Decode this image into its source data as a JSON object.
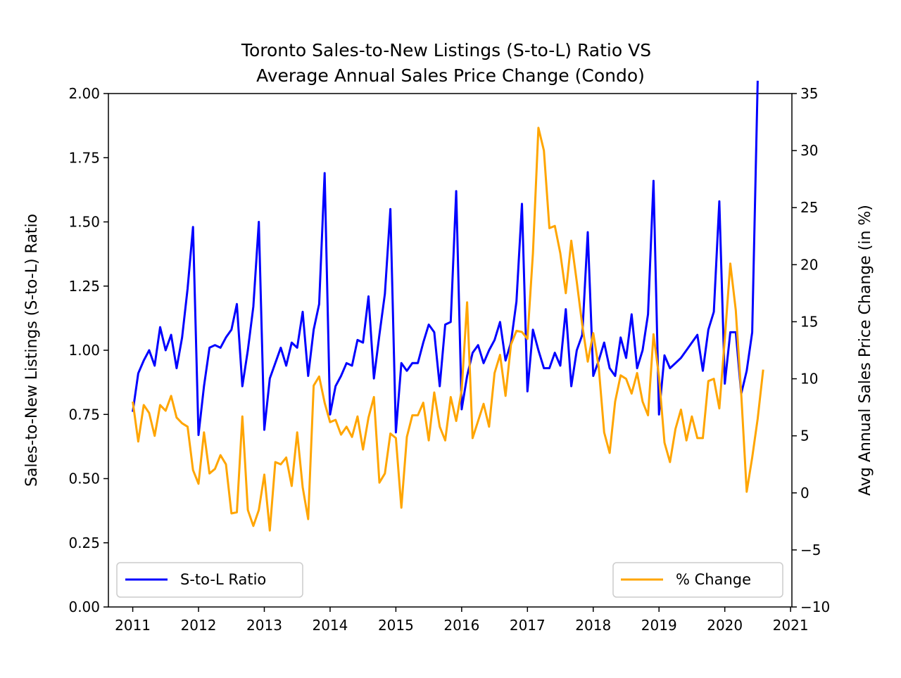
{
  "chart_data": {
    "type": "line",
    "title": [
      "Toronto Sales-to-New Listings (S-to-L) Ratio VS",
      "Average Annual Sales Price Change (Condo)"
    ],
    "xlabel": "",
    "ylabel_left": "Sales-to-New Listings (S-to-L) Ratio",
    "ylabel_right": "Avg Annual Sales Price Change (in %)",
    "xlim": [
      2010.63,
      2021.02
    ],
    "ylim_left": [
      0,
      2.0
    ],
    "ylim_right": [
      -10,
      35
    ],
    "x_ticks": [
      2011,
      2012,
      2013,
      2014,
      2015,
      2016,
      2017,
      2018,
      2019,
      2020,
      2021
    ],
    "y_ticks_left": [
      "0.00",
      "0.25",
      "0.50",
      "0.75",
      "1.00",
      "1.25",
      "1.50",
      "1.75",
      "2.00"
    ],
    "y_ticks_right": [
      "−10",
      "−5",
      "0",
      "5",
      "10",
      "15",
      "20",
      "25",
      "30",
      "35"
    ],
    "grid": false,
    "series": [
      {
        "name": "S-to-L Ratio",
        "axis": "left",
        "color": "#0000ff",
        "legend_position": "lower-left",
        "start_year": 2011,
        "start_month": 1,
        "values": [
          0.76,
          0.91,
          0.96,
          1.0,
          0.94,
          1.09,
          1.0,
          1.06,
          0.93,
          1.05,
          1.24,
          1.48,
          0.67,
          0.86,
          1.01,
          1.02,
          1.01,
          1.05,
          1.08,
          1.18,
          0.86,
          1.0,
          1.17,
          1.5,
          0.69,
          0.89,
          0.95,
          1.01,
          0.94,
          1.03,
          1.01,
          1.15,
          0.9,
          1.08,
          1.18,
          1.69,
          0.75,
          0.86,
          0.9,
          0.95,
          0.94,
          1.04,
          1.03,
          1.21,
          0.89,
          1.06,
          1.22,
          1.55,
          0.68,
          0.95,
          0.92,
          0.95,
          0.95,
          1.03,
          1.1,
          1.07,
          0.86,
          1.1,
          1.11,
          1.62,
          0.77,
          0.9,
          0.99,
          1.02,
          0.95,
          1.0,
          1.04,
          1.11,
          0.96,
          1.03,
          1.19,
          1.57,
          0.84,
          1.08,
          1.0,
          0.93,
          0.93,
          0.99,
          0.94,
          1.16,
          0.86,
          1.0,
          1.06,
          1.46,
          0.9,
          0.96,
          1.03,
          0.93,
          0.9,
          1.05,
          0.97,
          1.14,
          0.93,
          1.0,
          1.14,
          1.66,
          0.75,
          0.98,
          0.93,
          0.95,
          0.97,
          1.0,
          1.03,
          1.06,
          0.92,
          1.08,
          1.15,
          1.58,
          0.87,
          1.07,
          1.07,
          0.83,
          0.92,
          1.07,
          2.05
        ]
      },
      {
        "name": "% Change",
        "axis": "right",
        "color": "#ffa500",
        "legend_position": "lower-right",
        "start_year": 2011,
        "start_month": 1,
        "values": [
          8.0,
          4.5,
          7.7,
          7.0,
          5.0,
          7.7,
          7.2,
          8.5,
          6.6,
          6.1,
          5.8,
          2.0,
          0.8,
          5.3,
          1.7,
          2.1,
          3.3,
          2.5,
          -1.8,
          -1.7,
          6.7,
          -1.5,
          -2.9,
          -1.5,
          1.6,
          -3.3,
          2.7,
          2.5,
          3.1,
          0.6,
          5.3,
          0.5,
          -2.3,
          9.4,
          10.2,
          7.9,
          6.2,
          6.4,
          5.1,
          5.8,
          4.9,
          6.7,
          3.8,
          6.6,
          8.4,
          0.9,
          1.7,
          5.2,
          4.8,
          -1.3,
          4.9,
          6.8,
          6.8,
          7.9,
          4.6,
          8.8,
          5.8,
          4.6,
          8.4,
          6.3,
          9.0,
          16.7,
          4.8,
          6.3,
          7.8,
          5.8,
          10.5,
          12.1,
          8.5,
          13.0,
          14.2,
          14.1,
          13.5,
          21.0,
          32.0,
          30.0,
          23.2,
          23.4,
          21.0,
          17.5,
          22.1,
          18.5,
          14.7,
          11.5,
          14.0,
          11.0,
          5.3,
          3.5,
          8.0,
          10.3,
          10.0,
          8.7,
          10.5,
          8.0,
          6.8,
          13.9,
          10.2,
          4.4,
          2.7,
          5.6,
          7.3,
          4.6,
          6.7,
          4.8,
          4.8,
          9.8,
          10.0,
          7.4,
          13.5,
          20.1,
          16.0,
          8.7,
          0.1,
          3.1,
          6.5,
          10.8
        ]
      }
    ]
  }
}
